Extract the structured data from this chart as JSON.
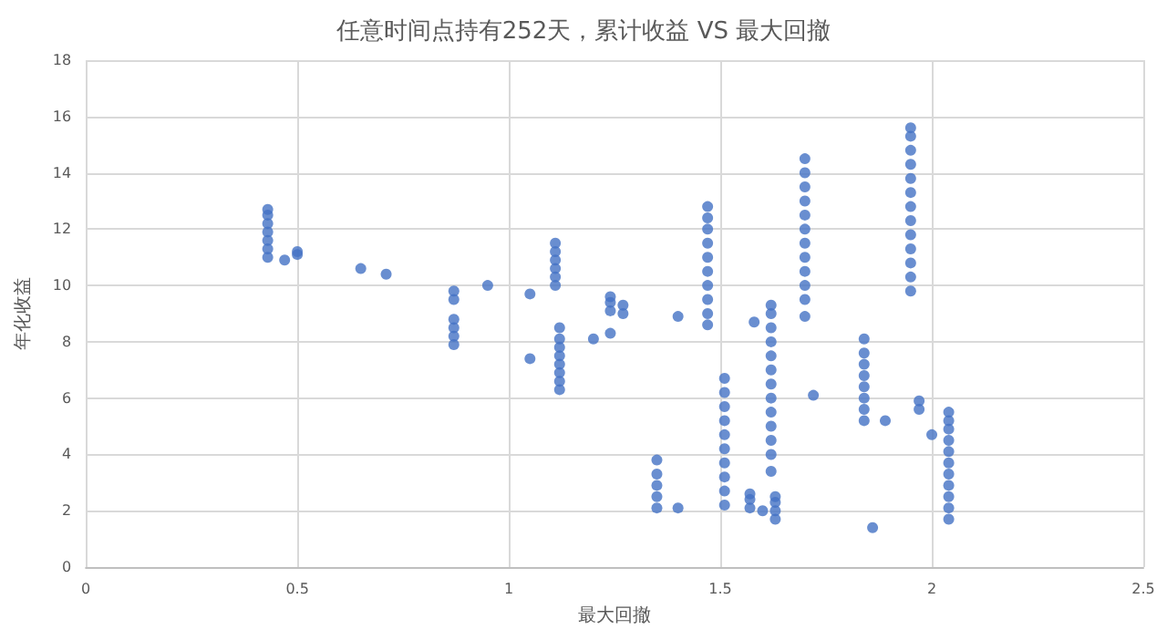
{
  "chart_data": {
    "type": "scatter",
    "title": "任意时间点持有252天，累计收益 VS 最大回撤",
    "xlabel": "最大回撤",
    "ylabel": "年化收益",
    "x": [
      0.43,
      0.43,
      0.43,
      0.43,
      0.43,
      0.43,
      0.43,
      0.47,
      0.5,
      0.5,
      0.65,
      0.71,
      0.87,
      0.87,
      0.87,
      0.87,
      0.87,
      0.87,
      0.95,
      1.05,
      1.05,
      1.11,
      1.11,
      1.11,
      1.11,
      1.11,
      1.11,
      1.12,
      1.12,
      1.12,
      1.12,
      1.12,
      1.12,
      1.12,
      1.12,
      1.2,
      1.24,
      1.24,
      1.24,
      1.24,
      1.27,
      1.27,
      1.35,
      1.35,
      1.35,
      1.35,
      1.35,
      1.4,
      1.4,
      1.47,
      1.47,
      1.47,
      1.47,
      1.47,
      1.47,
      1.47,
      1.47,
      1.47,
      1.47,
      1.51,
      1.51,
      1.51,
      1.51,
      1.51,
      1.51,
      1.51,
      1.51,
      1.51,
      1.51,
      1.57,
      1.57,
      1.57,
      1.58,
      1.6,
      1.62,
      1.62,
      1.62,
      1.62,
      1.62,
      1.62,
      1.62,
      1.62,
      1.62,
      1.62,
      1.62,
      1.62,
      1.62,
      1.63,
      1.63,
      1.63,
      1.63,
      1.7,
      1.7,
      1.7,
      1.7,
      1.7,
      1.7,
      1.7,
      1.7,
      1.7,
      1.7,
      1.7,
      1.7,
      1.72,
      1.84,
      1.84,
      1.84,
      1.84,
      1.84,
      1.84,
      1.84,
      1.84,
      1.86,
      1.89,
      1.95,
      1.95,
      1.95,
      1.95,
      1.95,
      1.95,
      1.95,
      1.95,
      1.95,
      1.95,
      1.95,
      1.95,
      1.95,
      1.97,
      1.97,
      2.0,
      2.04,
      2.04,
      2.04,
      2.04,
      2.04,
      2.04,
      2.04,
      2.04,
      2.04,
      2.04,
      2.04
    ],
    "values": [
      11.0,
      11.3,
      11.6,
      11.9,
      12.2,
      12.5,
      12.7,
      10.9,
      11.1,
      11.2,
      10.6,
      10.4,
      7.9,
      8.2,
      8.5,
      8.8,
      9.5,
      9.8,
      10.0,
      9.7,
      7.4,
      10.0,
      10.3,
      10.6,
      10.9,
      11.2,
      11.5,
      6.3,
      6.6,
      6.9,
      7.2,
      7.5,
      7.8,
      8.1,
      8.5,
      8.1,
      8.3,
      9.1,
      9.4,
      9.6,
      9.0,
      9.3,
      2.1,
      2.5,
      2.9,
      3.3,
      3.8,
      8.9,
      2.1,
      8.6,
      9.0,
      9.5,
      10.0,
      10.5,
      11.0,
      11.5,
      12.0,
      12.4,
      12.8,
      2.2,
      2.7,
      3.2,
      3.7,
      4.2,
      4.7,
      5.2,
      5.7,
      6.2,
      6.7,
      2.1,
      2.4,
      2.6,
      8.7,
      2.0,
      3.4,
      4.0,
      4.5,
      5.0,
      5.5,
      6.0,
      6.5,
      7.0,
      7.5,
      8.0,
      8.5,
      9.0,
      9.3,
      1.7,
      2.0,
      2.3,
      2.5,
      8.9,
      9.5,
      10.0,
      10.5,
      11.0,
      11.5,
      12.0,
      12.5,
      13.0,
      13.5,
      14.0,
      14.5,
      6.1,
      5.2,
      5.6,
      6.0,
      6.4,
      6.8,
      7.2,
      7.6,
      8.1,
      1.4,
      5.2,
      9.8,
      10.3,
      10.8,
      11.3,
      11.8,
      12.3,
      12.8,
      13.3,
      13.8,
      14.3,
      14.8,
      15.3,
      15.6,
      5.6,
      5.9,
      4.7,
      1.7,
      2.1,
      2.5,
      2.9,
      3.3,
      3.7,
      4.1,
      4.5,
      4.9,
      5.2,
      5.5
    ],
    "color": "#4472c4",
    "marker": "circle",
    "grid": true,
    "xlim": [
      0,
      2.5
    ],
    "xticks": [
      0,
      0.5,
      1,
      1.5,
      2,
      2.5
    ],
    "ylim": [
      0,
      18
    ],
    "yticks": [
      0,
      2,
      4,
      6,
      8,
      10,
      12,
      14,
      16,
      18
    ]
  }
}
